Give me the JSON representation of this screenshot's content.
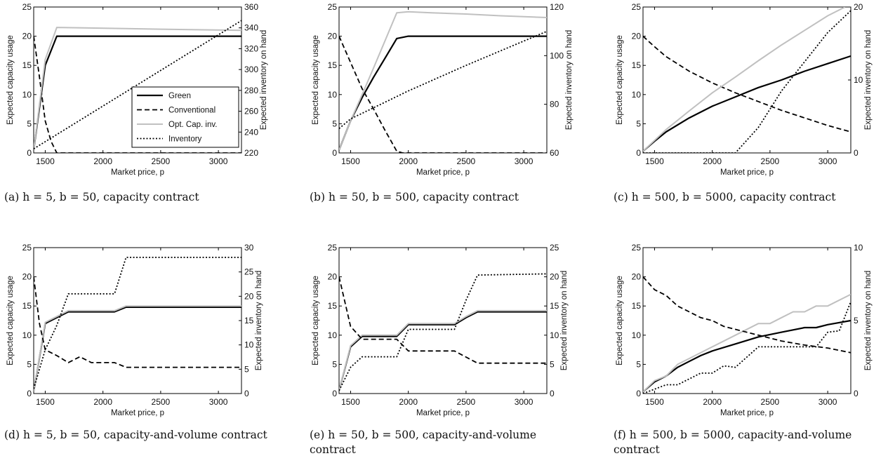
{
  "captions": [
    "(a) h = 5, b = 50, capacity contract",
    "(b) h = 50, b = 500, capacity contract",
    "(c) h = 500, b = 5000, capacity contract",
    "(d) h = 5, b = 50, capacity-and-volume contract",
    "(e) h = 50, b = 500, capacity-and-volume contract",
    "(f) h = 500, b = 5000, capacity-and-volume contract"
  ],
  "legend": [
    "Green",
    "Conventional",
    "Opt. Cap. inv.",
    "Inventory"
  ],
  "colors": {
    "green": "#000000",
    "conventional": "#000000",
    "opt_cap_inv": "#c0c0c0",
    "inventory": "#000000"
  },
  "chart_data": [
    {
      "type": "line",
      "xlabel": "Market price, p",
      "ylabel": "Expected capacity usage",
      "y2label": "Expected inventory on hand",
      "xlim": [
        1400,
        3200
      ],
      "xticks": [
        1500,
        2000,
        2500,
        3000
      ],
      "ylim": [
        0,
        25
      ],
      "yticks": [
        0,
        5,
        10,
        15,
        20,
        25
      ],
      "y2lim": [
        220,
        360
      ],
      "y2ticks": [
        220,
        240,
        260,
        280,
        300,
        320,
        340,
        360
      ],
      "legend_position": "bottom-right",
      "series": [
        {
          "name": "Green",
          "x": [
            1400,
            1500,
            1600,
            3200
          ],
          "y": [
            0.5,
            15,
            20,
            20
          ]
        },
        {
          "name": "Conventional",
          "x": [
            1400,
            1450,
            1500,
            1550,
            1600,
            3200
          ],
          "y": [
            20,
            13,
            5.5,
            2,
            0,
            0
          ]
        },
        {
          "name": "Opt. Cap. inv.",
          "x": [
            1400,
            1500,
            1600,
            2200,
            2500,
            3200
          ],
          "y": [
            0.5,
            16,
            21.5,
            21.3,
            21.2,
            21
          ]
        },
        {
          "name": "Inventory",
          "axis": "right",
          "x": [
            1400,
            3200
          ],
          "y": [
            224,
            347
          ]
        }
      ]
    },
    {
      "type": "line",
      "xlabel": "Market price, p",
      "ylabel": "Expected capacity usage",
      "y2label": "Expected inventory on hand",
      "xlim": [
        1400,
        3200
      ],
      "xticks": [
        1500,
        2000,
        2500,
        3000
      ],
      "ylim": [
        0,
        25
      ],
      "yticks": [
        0,
        5,
        10,
        15,
        20,
        25
      ],
      "y2lim": [
        60,
        120
      ],
      "y2ticks": [
        60,
        80,
        100,
        120
      ],
      "series": [
        {
          "name": "Green",
          "x": [
            1400,
            1500,
            1600,
            1700,
            1800,
            1900,
            2000,
            3200
          ],
          "y": [
            0.5,
            5.5,
            9.5,
            13,
            16.3,
            19.6,
            20,
            20
          ]
        },
        {
          "name": "Conventional",
          "x": [
            1400,
            1500,
            1600,
            1700,
            1800,
            1900,
            1950,
            3200
          ],
          "y": [
            20,
            15.5,
            11,
            7.5,
            3.8,
            0.3,
            0,
            0
          ]
        },
        {
          "name": "Opt. Cap. inv.",
          "x": [
            1400,
            1500,
            1600,
            1700,
            1800,
            1900,
            2000,
            2200,
            2500,
            2800,
            3200
          ],
          "y": [
            0.5,
            5.5,
            10,
            14.6,
            19.3,
            24,
            24.2,
            24,
            23.8,
            23.5,
            23.2
          ]
        },
        {
          "name": "Inventory",
          "axis": "right",
          "x": [
            1400,
            1500,
            2000,
            2500,
            3200
          ],
          "y": [
            70,
            74,
            85.5,
            96,
            110
          ]
        }
      ]
    },
    {
      "type": "line",
      "xlabel": "Market price, p",
      "ylabel": "Expected capacity usage",
      "y2label": "Expected inventory on hand",
      "xlim": [
        1400,
        3200
      ],
      "xticks": [
        1500,
        2000,
        2500,
        3000
      ],
      "ylim": [
        0,
        25
      ],
      "yticks": [
        0,
        5,
        10,
        15,
        20,
        25
      ],
      "y2lim": [
        0,
        20
      ],
      "y2ticks": [
        0,
        10,
        20
      ],
      "series": [
        {
          "name": "Green",
          "x": [
            1400,
            1500,
            1600,
            1800,
            2000,
            2200,
            2400,
            2600,
            2800,
            3000,
            3200
          ],
          "y": [
            0.3,
            2,
            3.6,
            6,
            8,
            9.6,
            11.2,
            12.5,
            14,
            15.3,
            16.6
          ]
        },
        {
          "name": "Conventional",
          "x": [
            1400,
            1500,
            1600,
            1800,
            2000,
            2200,
            2400,
            2600,
            2800,
            3000,
            3200
          ],
          "y": [
            20,
            18.2,
            16.5,
            14,
            12,
            10.3,
            8.8,
            7.3,
            6,
            4.7,
            3.6
          ]
        },
        {
          "name": "Opt. Cap. inv.",
          "x": [
            1400,
            1600,
            1800,
            2000,
            2200,
            2400,
            2600,
            2800,
            3000,
            3150
          ],
          "y": [
            0.3,
            4,
            7.2,
            10.3,
            13,
            15.8,
            18.5,
            21,
            23.5,
            25
          ]
        },
        {
          "name": "Inventory",
          "axis": "right",
          "x": [
            1400,
            2200,
            2400,
            2500,
            2600,
            2800,
            3000,
            3200
          ],
          "y": [
            0,
            0,
            3.5,
            6,
            8.5,
            12.5,
            16.5,
            19.5
          ]
        }
      ]
    },
    {
      "type": "line",
      "xlabel": "Market price, p",
      "ylabel": "Expected capacity usage",
      "y2label": "Expected inventory on hand",
      "xlim": [
        1400,
        3200
      ],
      "xticks": [
        1500,
        2000,
        2500,
        3000
      ],
      "ylim": [
        0,
        25
      ],
      "yticks": [
        0,
        5,
        10,
        15,
        20,
        25
      ],
      "y2lim": [
        0,
        30
      ],
      "y2ticks": [
        0,
        5,
        10,
        15,
        20,
        25,
        30
      ],
      "series": [
        {
          "name": "Green",
          "x": [
            1400,
            1500,
            1600,
            1700,
            2100,
            2200,
            3200
          ],
          "y": [
            0.3,
            12,
            13,
            14,
            14,
            14.8,
            14.8
          ]
        },
        {
          "name": "Opt. Cap. inv.",
          "x": [
            1400,
            1500,
            1600,
            1700,
            2100,
            2200,
            3200
          ],
          "y": [
            0.3,
            12.2,
            13.2,
            14.2,
            14.2,
            15,
            15
          ]
        },
        {
          "name": "Conventional",
          "x": [
            1400,
            1450,
            1500,
            1600,
            1700,
            1800,
            1900,
            2100,
            2200,
            3200
          ],
          "y": [
            20,
            12,
            7.5,
            6.5,
            5.3,
            6.3,
            5.3,
            5.3,
            4.5,
            4.5
          ]
        },
        {
          "name": "Inventory",
          "axis": "right",
          "x": [
            1400,
            1500,
            1600,
            1700,
            2100,
            2200,
            3200
          ],
          "y": [
            1,
            9,
            14,
            20.5,
            20.5,
            28,
            28
          ]
        }
      ]
    },
    {
      "type": "line",
      "xlabel": "Market price, p",
      "ylabel": "Expected capacity usage",
      "y2label": "Expected inventory on hand",
      "xlim": [
        1400,
        3200
      ],
      "xticks": [
        1500,
        2000,
        2500,
        3000
      ],
      "ylim": [
        0,
        25
      ],
      "yticks": [
        0,
        5,
        10,
        15,
        20,
        25
      ],
      "y2lim": [
        0,
        25
      ],
      "y2ticks": [
        0,
        5,
        10,
        15,
        20,
        25
      ],
      "series": [
        {
          "name": "Green",
          "x": [
            1400,
            1500,
            1600,
            1900,
            2000,
            2400,
            2500,
            2600,
            3200
          ],
          "y": [
            0.5,
            8,
            9.8,
            9.8,
            11.8,
            11.8,
            13,
            14,
            14
          ]
        },
        {
          "name": "Opt. Cap. inv.",
          "x": [
            1400,
            1500,
            1600,
            1900,
            2000,
            2400,
            2500,
            2600,
            3200
          ],
          "y": [
            0.5,
            8.2,
            10,
            10,
            12,
            12,
            13.2,
            14.2,
            14.2
          ]
        },
        {
          "name": "Conventional",
          "x": [
            1400,
            1500,
            1600,
            1900,
            2000,
            2400,
            2600,
            3200
          ],
          "y": [
            20,
            11.5,
            9.3,
            9.3,
            7.3,
            7.3,
            5.2,
            5.2
          ]
        },
        {
          "name": "Inventory",
          "axis": "right",
          "x": [
            1400,
            1500,
            1600,
            1900,
            2000,
            2400,
            2500,
            2600,
            3200
          ],
          "y": [
            0.5,
            4.5,
            6.3,
            6.3,
            11,
            11,
            16,
            20.3,
            20.5
          ]
        }
      ]
    },
    {
      "type": "line",
      "xlabel": "Market price, p",
      "ylabel": "Expected capacity usage",
      "y2label": "Expected inventory on hand",
      "xlim": [
        1400,
        3200
      ],
      "xticks": [
        1500,
        2000,
        2500,
        3000
      ],
      "ylim": [
        0,
        25
      ],
      "yticks": [
        0,
        5,
        10,
        15,
        20,
        25
      ],
      "y2lim": [
        0,
        10
      ],
      "y2ticks": [
        0,
        5,
        10
      ],
      "series": [
        {
          "name": "Green",
          "x": [
            1400,
            1500,
            1600,
            1700,
            1800,
            1900,
            2000,
            2200,
            2400,
            2600,
            2800,
            2900,
            3000,
            3200
          ],
          "y": [
            0.3,
            2,
            3,
            4.5,
            5.5,
            6.5,
            7.3,
            8.5,
            9.7,
            10.5,
            11.3,
            11.3,
            11.8,
            12.5
          ]
        },
        {
          "name": "Opt. Cap. inv.",
          "x": [
            1400,
            1500,
            1600,
            1700,
            1800,
            2000,
            2200,
            2400,
            2500,
            2600,
            2700,
            2800,
            2900,
            3000,
            3200
          ],
          "y": [
            0.3,
            2.2,
            3,
            5,
            6,
            8,
            10,
            12,
            12,
            13,
            14,
            14,
            15,
            15,
            17
          ]
        },
        {
          "name": "Conventional",
          "x": [
            1400,
            1500,
            1600,
            1700,
            1800,
            1900,
            2000,
            2100,
            2200,
            2400,
            2600,
            2800,
            3000,
            3200
          ],
          "y": [
            20,
            17.8,
            16.8,
            15,
            14,
            13,
            12.5,
            11.5,
            11,
            10,
            9,
            8.3,
            7.8,
            7
          ]
        },
        {
          "name": "Inventory",
          "axis": "right",
          "x": [
            1400,
            1500,
            1600,
            1700,
            1900,
            2000,
            2100,
            2200,
            2300,
            2400,
            2800,
            2900,
            3000,
            3100,
            3200
          ],
          "y": [
            0,
            0.3,
            0.6,
            0.6,
            1.4,
            1.4,
            1.9,
            1.8,
            2.5,
            3.2,
            3.2,
            3.2,
            4.2,
            4.3,
            6.3
          ]
        }
      ]
    }
  ]
}
